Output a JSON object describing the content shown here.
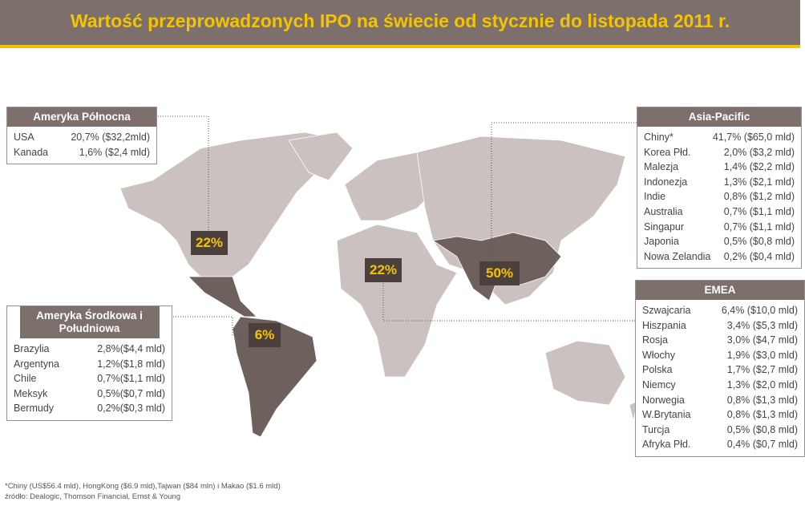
{
  "title": "Wartość przeprowadzonych IPO na świecie od stycznie do listopada 2011 r.",
  "regions": [
    {
      "name": "Ameryka Północna",
      "share": "22%",
      "rows": [
        [
          "USA",
          "20,7% ($32,2mld)"
        ],
        [
          "Kanada",
          "1,6% ($2,4 mld)"
        ]
      ]
    },
    {
      "name": "Ameryka Środkowa i Południowa",
      "share": "6%",
      "rows": [
        [
          "Brazylia",
          "2,8%($4,4 mld)"
        ],
        [
          "Argentyna",
          "1,2%($1,8 mld)"
        ],
        [
          "Chile",
          "0,7%($1,1 mld)"
        ],
        [
          "Meksyk",
          "0,5%($0,7 mld)"
        ],
        [
          "Bermudy",
          "0,2%($0,3 mld)"
        ]
      ]
    },
    {
      "name": "Asia-Pacific",
      "share": "50%",
      "rows": [
        [
          "Chiny*",
          "41,7% ($65,0 mld)"
        ],
        [
          "Korea Płd.",
          "2,0% ($3,2 mld)"
        ],
        [
          "Malezja",
          "1,4% ($2,2 mld)"
        ],
        [
          "Indonezja",
          "1,3% ($2,1 mld)"
        ],
        [
          "Indie",
          "0,8% ($1,2 mld)"
        ],
        [
          "Australia",
          "0,7% ($1,1 mld)"
        ],
        [
          "Singapur",
          "0,7% ($1,1 mld)"
        ],
        [
          "Japonia",
          "0,5% ($0,8 mld)"
        ],
        [
          "Nowa Zelandia",
          "0,2% ($0,4 mld)"
        ]
      ]
    },
    {
      "name": "EMEA",
      "share": "22%",
      "rows": [
        [
          "Szwajcaria",
          "6,4% ($10,0 mld)"
        ],
        [
          "Hiszpania",
          "3,4% ($5,3 mld)"
        ],
        [
          "Rosja",
          "3,0% ($4,7 mld)"
        ],
        [
          "Włochy",
          "1,9% ($3,0 mld)"
        ],
        [
          "Polska",
          "1,7% ($2,7 mld)"
        ],
        [
          "Niemcy",
          "1,3% ($2,0 mld)"
        ],
        [
          "Norwegia",
          "0,8% ($1,3 mld)"
        ],
        [
          "W.Brytania",
          "0,8% ($1,3 mld)"
        ],
        [
          "Turcja",
          "0,5% ($0,8 mld)"
        ],
        [
          "Afryka Płd.",
          "0,4% ($0,7 mld)"
        ]
      ]
    }
  ],
  "footnotes": [
    "*Chiny (US$56.4 mld), HongKong ($6.9 mld),Tajwan ($84 mln) i  Makao ($1.6 mld)",
    "źródło: Dealogic, Thomson Financial, Ernst & Young"
  ]
}
